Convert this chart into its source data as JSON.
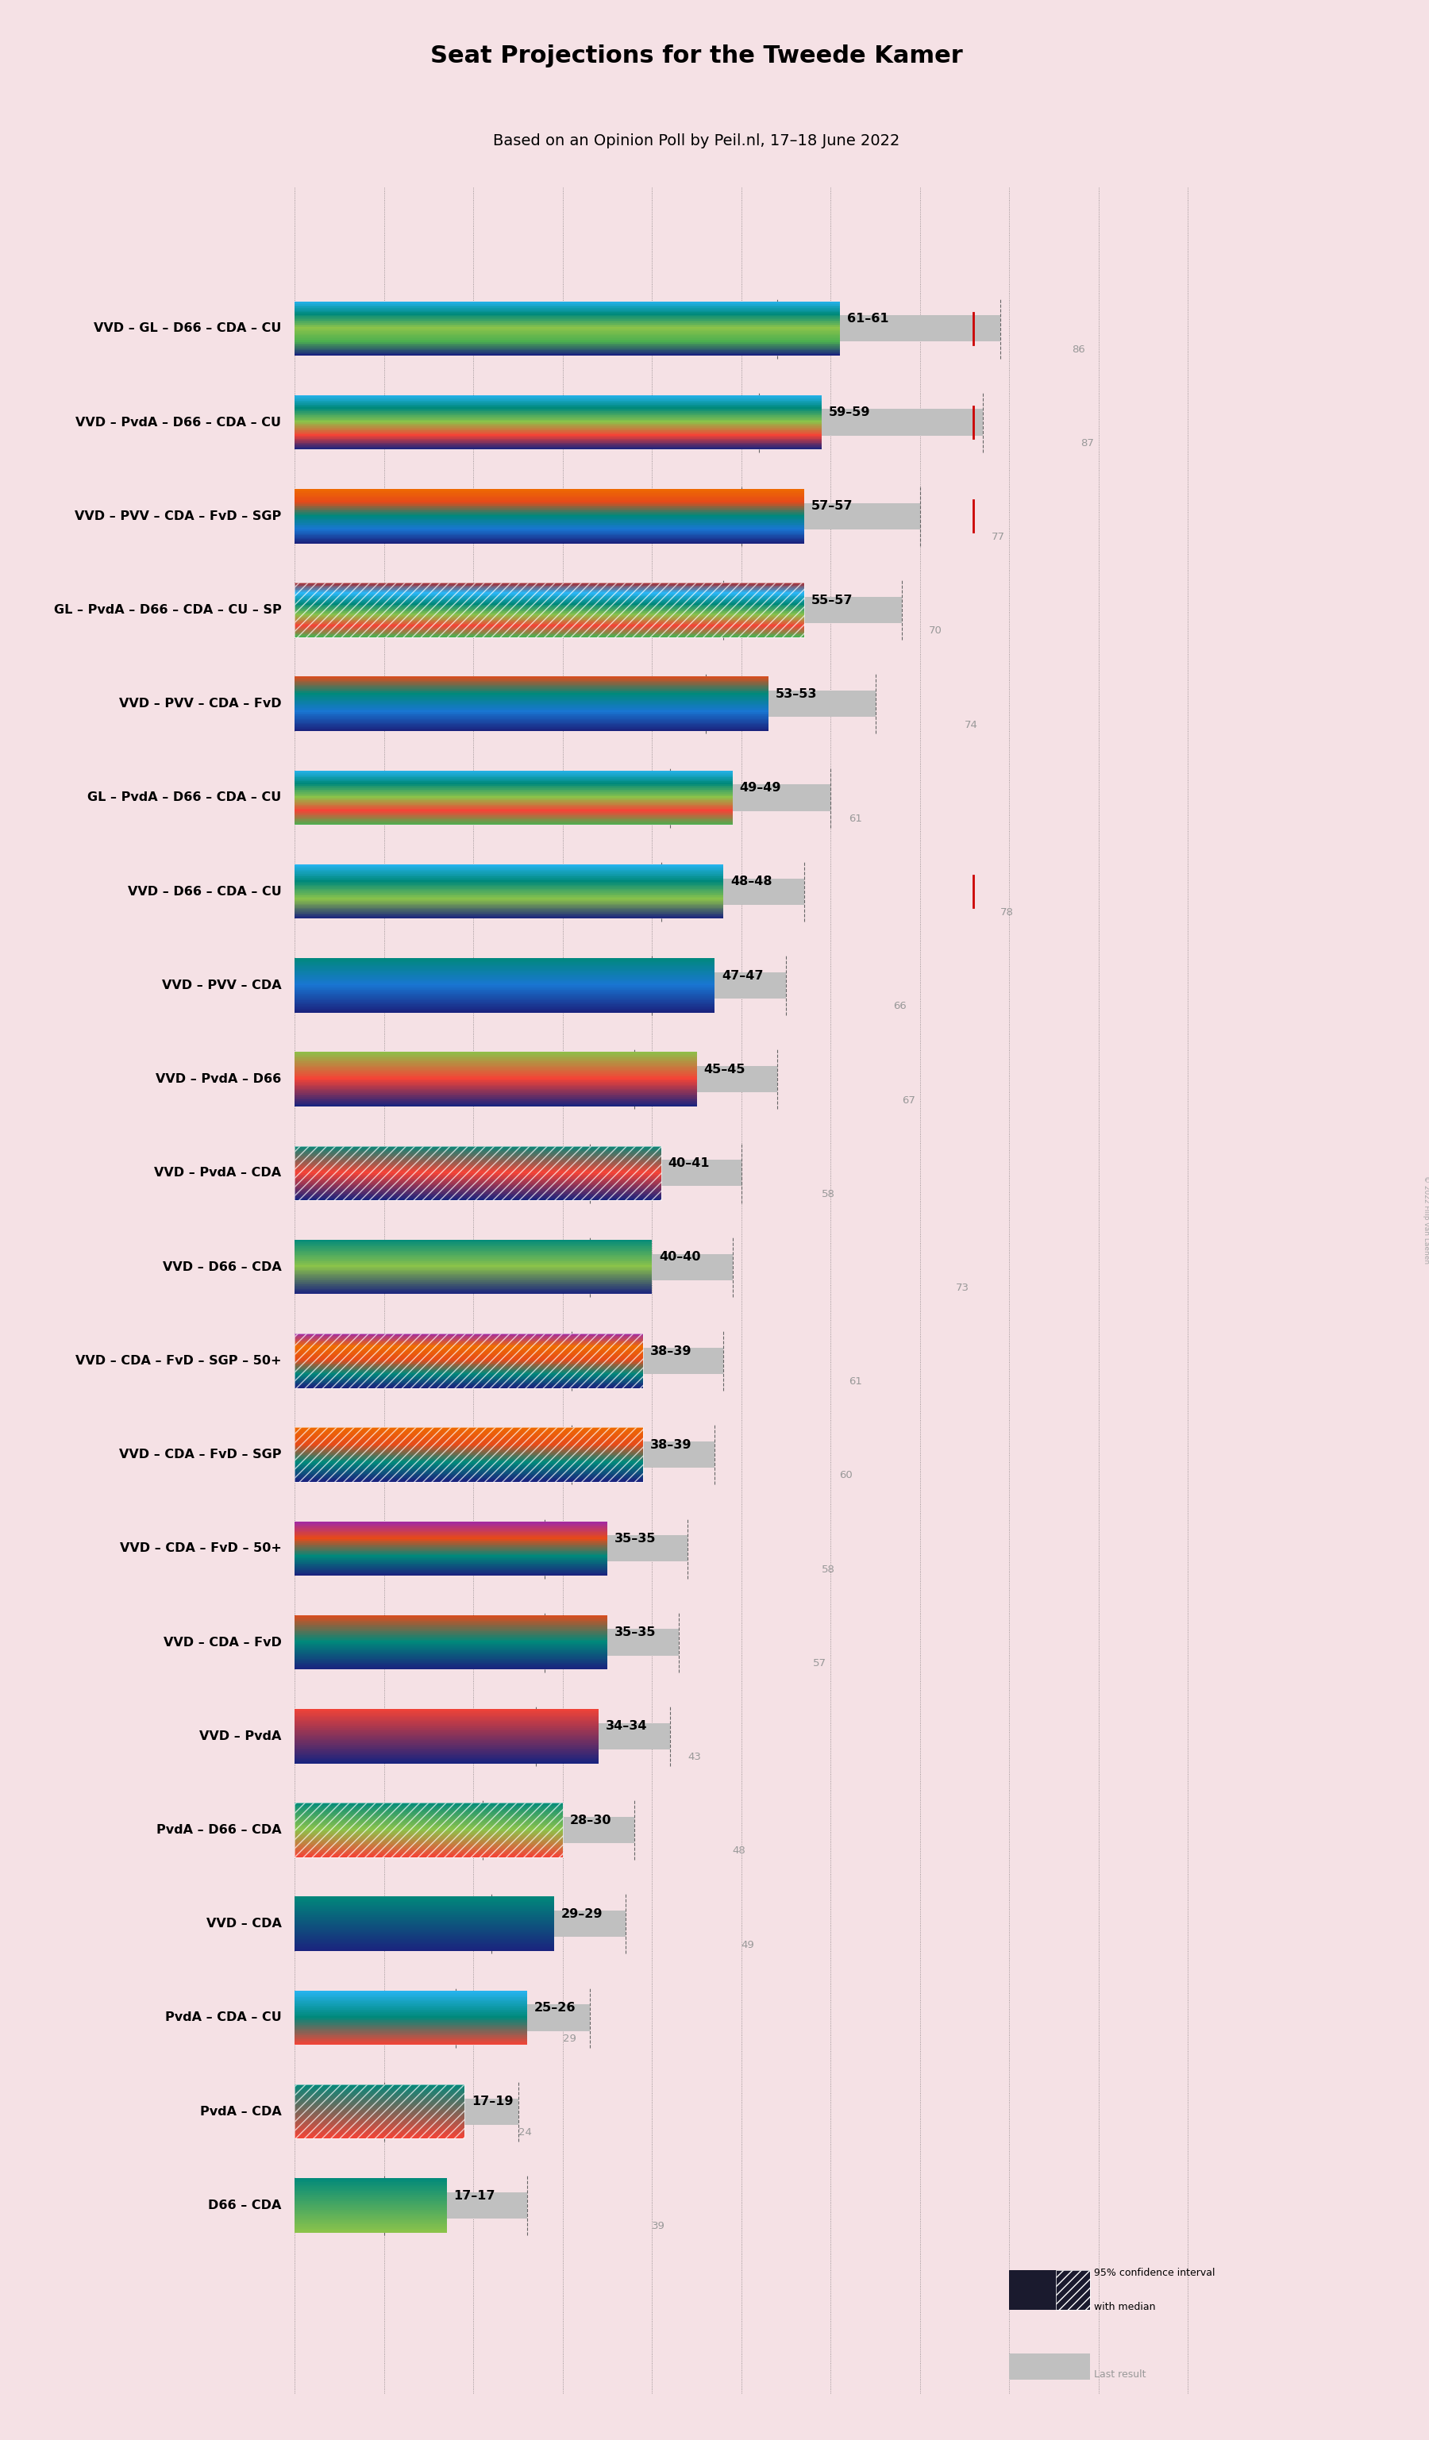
{
  "title": "Seat Projections for the Tweede Kamer",
  "subtitle": "Based on an Opinion Poll by Peil.nl, 17–18 June 2022",
  "background_color": "#f5e1e5",
  "copyright": "© 2022 Filip van Laenen",
  "majority": 76,
  "party_colors": {
    "VVD": "#1a237e",
    "GL": "#4caf50",
    "D66": "#8bc34a",
    "CDA": "#00897b",
    "CU": "#29b6f6",
    "PvdA": "#f44336",
    "PVV": "#1976d2",
    "FvD": "#e64a19",
    "SGP": "#ef6c00",
    "50+": "#9c27b0",
    "SP": "#b71c1c"
  },
  "coalitions": [
    {
      "name": "VVD – GL – D66 – CDA – CU",
      "ml": 61,
      "mh": 61,
      "cl": 54,
      "ch": 79,
      "lr": 86,
      "p": [
        "VVD",
        "GL",
        "D66",
        "CDA",
        "CU"
      ],
      "h": false
    },
    {
      "name": "VVD – PvdA – D66 – CDA – CU",
      "ml": 59,
      "mh": 59,
      "cl": 52,
      "ch": 77,
      "lr": 87,
      "p": [
        "VVD",
        "PvdA",
        "D66",
        "CDA",
        "CU"
      ],
      "h": false
    },
    {
      "name": "VVD – PVV – CDA – FvD – SGP",
      "ml": 57,
      "mh": 57,
      "cl": 50,
      "ch": 70,
      "lr": 77,
      "p": [
        "VVD",
        "PVV",
        "CDA",
        "FvD",
        "SGP"
      ],
      "h": false
    },
    {
      "name": "GL – PvdA – D66 – CDA – CU – SP",
      "ml": 55,
      "mh": 57,
      "cl": 48,
      "ch": 68,
      "lr": 70,
      "p": [
        "GL",
        "PvdA",
        "D66",
        "CDA",
        "CU",
        "SP"
      ],
      "h": true
    },
    {
      "name": "VVD – PVV – CDA – FvD",
      "ml": 53,
      "mh": 53,
      "cl": 46,
      "ch": 65,
      "lr": 74,
      "p": [
        "VVD",
        "PVV",
        "CDA",
        "FvD"
      ],
      "h": false
    },
    {
      "name": "GL – PvdA – D66 – CDA – CU",
      "ml": 49,
      "mh": 49,
      "cl": 42,
      "ch": 60,
      "lr": 61,
      "p": [
        "GL",
        "PvdA",
        "D66",
        "CDA",
        "CU"
      ],
      "h": false
    },
    {
      "name": "VVD – D66 – CDA – CU",
      "ml": 48,
      "mh": 48,
      "cl": 41,
      "ch": 57,
      "lr": 78,
      "p": [
        "VVD",
        "D66",
        "CDA",
        "CU"
      ],
      "h": false
    },
    {
      "name": "VVD – PVV – CDA",
      "ml": 47,
      "mh": 47,
      "cl": 40,
      "ch": 55,
      "lr": 66,
      "p": [
        "VVD",
        "PVV",
        "CDA"
      ],
      "h": false
    },
    {
      "name": "VVD – PvdA – D66",
      "ml": 45,
      "mh": 45,
      "cl": 38,
      "ch": 54,
      "lr": 67,
      "p": [
        "VVD",
        "PvdA",
        "D66"
      ],
      "h": false
    },
    {
      "name": "VVD – PvdA – CDA",
      "ml": 40,
      "mh": 41,
      "cl": 33,
      "ch": 50,
      "lr": 58,
      "p": [
        "VVD",
        "PvdA",
        "CDA"
      ],
      "h": true
    },
    {
      "name": "VVD – D66 – CDA",
      "ml": 40,
      "mh": 40,
      "cl": 33,
      "ch": 49,
      "lr": 73,
      "p": [
        "VVD",
        "D66",
        "CDA"
      ],
      "h": false
    },
    {
      "name": "VVD – CDA – FvD – SGP – 50+",
      "ml": 38,
      "mh": 39,
      "cl": 31,
      "ch": 48,
      "lr": 61,
      "p": [
        "VVD",
        "CDA",
        "FvD",
        "SGP",
        "50+"
      ],
      "h": true
    },
    {
      "name": "VVD – CDA – FvD – SGP",
      "ml": 38,
      "mh": 39,
      "cl": 31,
      "ch": 47,
      "lr": 60,
      "p": [
        "VVD",
        "CDA",
        "FvD",
        "SGP"
      ],
      "h": true
    },
    {
      "name": "VVD – CDA – FvD – 50+",
      "ml": 35,
      "mh": 35,
      "cl": 28,
      "ch": 44,
      "lr": 58,
      "p": [
        "VVD",
        "CDA",
        "FvD",
        "50+"
      ],
      "h": false
    },
    {
      "name": "VVD – CDA – FvD",
      "ml": 35,
      "mh": 35,
      "cl": 28,
      "ch": 43,
      "lr": 57,
      "p": [
        "VVD",
        "CDA",
        "FvD"
      ],
      "h": false
    },
    {
      "name": "VVD – PvdA",
      "ml": 34,
      "mh": 34,
      "cl": 27,
      "ch": 42,
      "lr": 43,
      "p": [
        "VVD",
        "PvdA"
      ],
      "h": false
    },
    {
      "name": "PvdA – D66 – CDA",
      "ml": 28,
      "mh": 30,
      "cl": 21,
      "ch": 38,
      "lr": 48,
      "p": [
        "PvdA",
        "D66",
        "CDA"
      ],
      "h": true
    },
    {
      "name": "VVD – CDA",
      "ml": 29,
      "mh": 29,
      "cl": 22,
      "ch": 37,
      "lr": 49,
      "p": [
        "VVD",
        "CDA"
      ],
      "h": false
    },
    {
      "name": "PvdA – CDA – CU",
      "ml": 25,
      "mh": 26,
      "cl": 18,
      "ch": 33,
      "lr": 29,
      "p": [
        "PvdA",
        "CDA",
        "CU"
      ],
      "h": false
    },
    {
      "name": "PvdA – CDA",
      "ml": 17,
      "mh": 19,
      "cl": 10,
      "ch": 25,
      "lr": 24,
      "p": [
        "PvdA",
        "CDA"
      ],
      "h": true
    },
    {
      "name": "D66 – CDA",
      "ml": 17,
      "mh": 17,
      "cl": 10,
      "ch": 26,
      "lr": 39,
      "p": [
        "D66",
        "CDA"
      ],
      "h": false
    }
  ]
}
